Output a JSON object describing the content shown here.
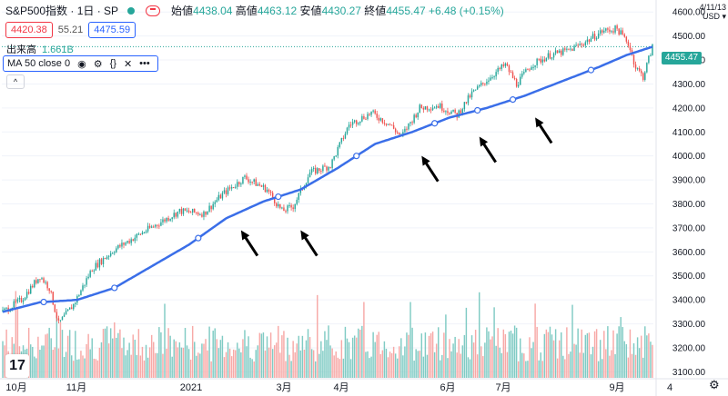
{
  "header": {
    "symbol": "S&P500指数 · 1日 · SP",
    "open_label": "始値",
    "open": "4438.04",
    "high_label": "高値",
    "high": "4463.12",
    "low_label": "安値",
    "low": "4430.27",
    "close_label": "終値",
    "close": "4455.47",
    "change": "+6.48 (+0.15%)"
  },
  "quote": {
    "bid": "4420.38",
    "spread": "55.21",
    "ask": "4475.59"
  },
  "volume": {
    "label": "出来高",
    "value": "1.661B"
  },
  "indicator": {
    "label": "MA 50 close 0",
    "icons": [
      "eye-icon",
      "gear-icon",
      "braces-icon",
      "close-icon",
      "more-icon"
    ],
    "eye": "◉",
    "gear": "⚙",
    "braces": "{}",
    "close": "✕",
    "more": "•••"
  },
  "collapse": "^",
  "currency": {
    "line1": "4/11/13",
    "line2": "USD ▾"
  },
  "last_price": "4455.47",
  "logo": "17",
  "settings": "⚙",
  "colors": {
    "up": "#26a69a",
    "down": "#ef5350",
    "ma": "#3a6ee8",
    "arrow": "#000000",
    "vol_up": "#80cbc4",
    "vol_down": "#f7a9a7"
  },
  "chart_data": {
    "type": "candlestick",
    "yaxis_ticks": [
      3100,
      3200,
      3300,
      3400,
      3500,
      3600,
      3700,
      3800,
      3900,
      4000,
      4100,
      4200,
      4300,
      4400,
      4500,
      4600
    ],
    "ylim": [
      3075,
      4650
    ],
    "xaxis_labels": [
      "10月",
      "11月",
      "2021",
      "3月",
      "4月",
      "6月",
      "7月",
      "9月",
      "4"
    ],
    "price_keypoints": [
      {
        "i": 0,
        "p": 3350
      },
      {
        "i": 10,
        "p": 3400
      },
      {
        "i": 20,
        "p": 3500
      },
      {
        "i": 25,
        "p": 3450
      },
      {
        "i": 30,
        "p": 3300
      },
      {
        "i": 38,
        "p": 3380
      },
      {
        "i": 48,
        "p": 3530
      },
      {
        "i": 60,
        "p": 3610
      },
      {
        "i": 75,
        "p": 3680
      },
      {
        "i": 95,
        "p": 3770
      },
      {
        "i": 108,
        "p": 3760
      },
      {
        "i": 118,
        "p": 3840
      },
      {
        "i": 130,
        "p": 3910
      },
      {
        "i": 142,
        "p": 3860
      },
      {
        "i": 150,
        "p": 3770
      },
      {
        "i": 156,
        "p": 3790
      },
      {
        "i": 165,
        "p": 3930
      },
      {
        "i": 176,
        "p": 3960
      },
      {
        "i": 186,
        "p": 4130
      },
      {
        "i": 198,
        "p": 4180
      },
      {
        "i": 208,
        "p": 4130
      },
      {
        "i": 214,
        "p": 4080
      },
      {
        "i": 224,
        "p": 4200
      },
      {
        "i": 234,
        "p": 4210
      },
      {
        "i": 244,
        "p": 4170
      },
      {
        "i": 252,
        "p": 4260
      },
      {
        "i": 262,
        "p": 4330
      },
      {
        "i": 270,
        "p": 4380
      },
      {
        "i": 276,
        "p": 4300
      },
      {
        "i": 284,
        "p": 4380
      },
      {
        "i": 294,
        "p": 4420
      },
      {
        "i": 304,
        "p": 4440
      },
      {
        "i": 314,
        "p": 4480
      },
      {
        "i": 322,
        "p": 4520
      },
      {
        "i": 330,
        "p": 4530
      },
      {
        "i": 336,
        "p": 4470
      },
      {
        "i": 340,
        "p": 4370
      },
      {
        "i": 344,
        "p": 4330
      },
      {
        "i": 349,
        "p": 4455
      }
    ],
    "ma_keypoints": [
      {
        "i": 0,
        "p": 3350
      },
      {
        "i": 20,
        "p": 3390
      },
      {
        "i": 40,
        "p": 3400
      },
      {
        "i": 60,
        "p": 3450
      },
      {
        "i": 80,
        "p": 3540
      },
      {
        "i": 100,
        "p": 3630
      },
      {
        "i": 120,
        "p": 3740
      },
      {
        "i": 140,
        "p": 3810
      },
      {
        "i": 160,
        "p": 3860
      },
      {
        "i": 180,
        "p": 3950
      },
      {
        "i": 200,
        "p": 4050
      },
      {
        "i": 220,
        "p": 4100
      },
      {
        "i": 240,
        "p": 4160
      },
      {
        "i": 260,
        "p": 4200
      },
      {
        "i": 280,
        "p": 4250
      },
      {
        "i": 300,
        "p": 4310
      },
      {
        "i": 320,
        "p": 4370
      },
      {
        "i": 335,
        "p": 4420
      },
      {
        "i": 349,
        "p": 4455
      }
    ],
    "ma_markers": [
      22,
      60,
      105,
      148,
      190,
      232,
      255,
      274,
      316
    ],
    "arrow_points": [
      {
        "i": 128,
        "p": 3690
      },
      {
        "i": 160,
        "p": 3690
      },
      {
        "i": 225,
        "p": 4000
      },
      {
        "i": 256,
        "p": 4080
      },
      {
        "i": 286,
        "p": 4160
      }
    ],
    "n_bars": 350
  }
}
